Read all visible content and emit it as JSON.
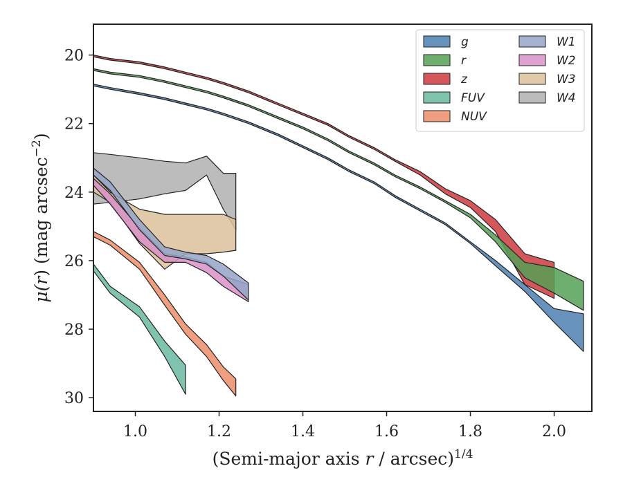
{
  "chart_data": {
    "type": "area",
    "xlabel_main": "(Semi-major axis ",
    "xlabel_var": "r",
    "xlabel_rest": " / arcsec)",
    "xlabel_sup": "1/4",
    "ylabel_prefix": "μ(",
    "ylabel_var": "r",
    "ylabel_mid": ") (mag arcsec",
    "ylabel_sup": "−2",
    "ylabel_suffix": ")",
    "xlim": [
      0.9,
      2.09
    ],
    "ylim": [
      30.4,
      19.1
    ],
    "y_inverted": true,
    "xticks": [
      {
        "value": 1.0,
        "label": "1.0"
      },
      {
        "value": 1.2,
        "label": "1.2"
      },
      {
        "value": 1.4,
        "label": "1.4"
      },
      {
        "value": 1.6,
        "label": "1.6"
      },
      {
        "value": 1.8,
        "label": "1.8"
      },
      {
        "value": 2.0,
        "label": "2.0"
      }
    ],
    "yticks": [
      {
        "value": 20,
        "label": "20"
      },
      {
        "value": 22,
        "label": "22"
      },
      {
        "value": 24,
        "label": "24"
      },
      {
        "value": 26,
        "label": "26"
      },
      {
        "value": 28,
        "label": "28"
      },
      {
        "value": 30,
        "label": "30"
      }
    ],
    "grid": false,
    "legend_position": "top-right",
    "legend_columns": 2,
    "series": [
      {
        "name": "g",
        "color": "#4c7fb0",
        "x": [
          0.9,
          0.94,
          1.01,
          1.07,
          1.12,
          1.17,
          1.21,
          1.27,
          1.34,
          1.4,
          1.46,
          1.51,
          1.57,
          1.62,
          1.68,
          1.74,
          1.8,
          1.86,
          1.93,
          2.0,
          2.07
        ],
        "y_upper": [
          20.85,
          20.95,
          21.1,
          21.25,
          21.4,
          21.55,
          21.7,
          21.95,
          22.3,
          22.65,
          23.0,
          23.35,
          23.7,
          24.1,
          24.5,
          24.9,
          25.45,
          26.0,
          26.7,
          27.4,
          27.55
        ],
        "y_lower": [
          20.9,
          21.0,
          21.15,
          21.3,
          21.45,
          21.6,
          21.75,
          22.0,
          22.35,
          22.7,
          23.05,
          23.4,
          23.75,
          24.15,
          24.55,
          24.95,
          25.5,
          26.15,
          26.9,
          27.8,
          28.65
        ]
      },
      {
        "name": "r",
        "color": "#55a055",
        "x": [
          0.9,
          0.94,
          1.01,
          1.07,
          1.12,
          1.17,
          1.21,
          1.27,
          1.34,
          1.4,
          1.46,
          1.51,
          1.57,
          1.62,
          1.68,
          1.74,
          1.8,
          1.86,
          1.93,
          2.0,
          2.07
        ],
        "y_upper": [
          20.4,
          20.5,
          20.6,
          20.75,
          20.9,
          21.05,
          21.2,
          21.45,
          21.8,
          22.1,
          22.45,
          22.8,
          23.15,
          23.5,
          23.85,
          24.25,
          24.65,
          25.25,
          26.05,
          26.2,
          26.6
        ],
        "y_lower": [
          20.45,
          20.55,
          20.65,
          20.8,
          20.95,
          21.1,
          21.25,
          21.5,
          21.85,
          22.15,
          22.5,
          22.85,
          23.2,
          23.55,
          23.9,
          24.3,
          24.75,
          25.45,
          26.5,
          26.95,
          27.45
        ]
      },
      {
        "name": "z",
        "color": "#cc3a3f",
        "x": [
          0.9,
          0.94,
          1.01,
          1.07,
          1.12,
          1.17,
          1.21,
          1.27,
          1.34,
          1.4,
          1.46,
          1.51,
          1.57,
          1.62,
          1.68,
          1.74,
          1.8,
          1.86,
          1.93,
          2.0
        ],
        "y_upper": [
          20.0,
          20.1,
          20.2,
          20.35,
          20.5,
          20.65,
          20.8,
          21.05,
          21.4,
          21.7,
          22.0,
          22.35,
          22.7,
          23.05,
          23.4,
          23.9,
          24.25,
          24.8,
          25.8,
          26.05
        ],
        "y_lower": [
          20.05,
          20.15,
          20.25,
          20.4,
          20.55,
          20.7,
          20.85,
          21.1,
          21.45,
          21.75,
          22.05,
          22.4,
          22.75,
          23.1,
          23.5,
          24.05,
          24.45,
          25.15,
          26.7,
          27.1
        ]
      },
      {
        "name": "FUV",
        "color": "#6ab9a0",
        "x": [
          0.9,
          0.94,
          1.01,
          1.07,
          1.12
        ],
        "y_upper": [
          26.1,
          26.75,
          27.35,
          28.35,
          29.05
        ],
        "y_lower": [
          26.3,
          26.95,
          27.65,
          28.8,
          29.9
        ]
      },
      {
        "name": "NUV",
        "color": "#ec8d68",
        "x": [
          0.9,
          0.94,
          1.01,
          1.07,
          1.12,
          1.17,
          1.21,
          1.24
        ],
        "y_upper": [
          25.15,
          25.4,
          26.05,
          27.0,
          27.85,
          28.45,
          29.1,
          29.45
        ],
        "y_lower": [
          25.3,
          25.55,
          26.25,
          27.3,
          28.15,
          28.8,
          29.5,
          29.95
        ]
      },
      {
        "name": "W1",
        "color": "#94a4c8",
        "x": [
          0.9,
          0.94,
          1.01,
          1.07,
          1.12,
          1.17,
          1.21,
          1.27
        ],
        "y_upper": [
          23.3,
          23.7,
          24.8,
          25.6,
          25.75,
          25.85,
          26.1,
          26.65
        ],
        "y_lower": [
          23.5,
          23.95,
          25.1,
          25.85,
          25.95,
          26.1,
          26.45,
          27.15
        ]
      },
      {
        "name": "W2",
        "color": "#d891c8",
        "x": [
          0.9,
          0.94,
          1.01,
          1.07,
          1.12,
          1.17,
          1.21,
          1.27
        ],
        "y_upper": [
          23.6,
          24.05,
          25.05,
          25.8,
          25.9,
          26.05,
          26.45,
          26.7
        ],
        "y_lower": [
          23.8,
          24.35,
          25.45,
          26.05,
          26.05,
          26.35,
          26.75,
          27.2
        ]
      },
      {
        "name": "W3",
        "color": "#dcc19a",
        "x": [
          0.9,
          0.94,
          1.01,
          1.07,
          1.12,
          1.17,
          1.21,
          1.24
        ],
        "y_upper": [
          23.5,
          24.0,
          24.5,
          24.65,
          24.65,
          24.65,
          24.65,
          24.8
        ],
        "y_lower": [
          24.0,
          24.3,
          25.5,
          26.25,
          25.8,
          25.8,
          25.75,
          25.7
        ]
      },
      {
        "name": "W4",
        "color": "#b0b0b0",
        "x": [
          0.9,
          0.94,
          1.01,
          1.07,
          1.12,
          1.17,
          1.21,
          1.24
        ],
        "y_upper": [
          22.85,
          22.9,
          23.0,
          23.1,
          23.15,
          22.95,
          23.45,
          23.45
        ],
        "y_lower": [
          24.35,
          24.3,
          24.2,
          24.05,
          23.95,
          23.5,
          24.5,
          25.1
        ]
      }
    ]
  }
}
